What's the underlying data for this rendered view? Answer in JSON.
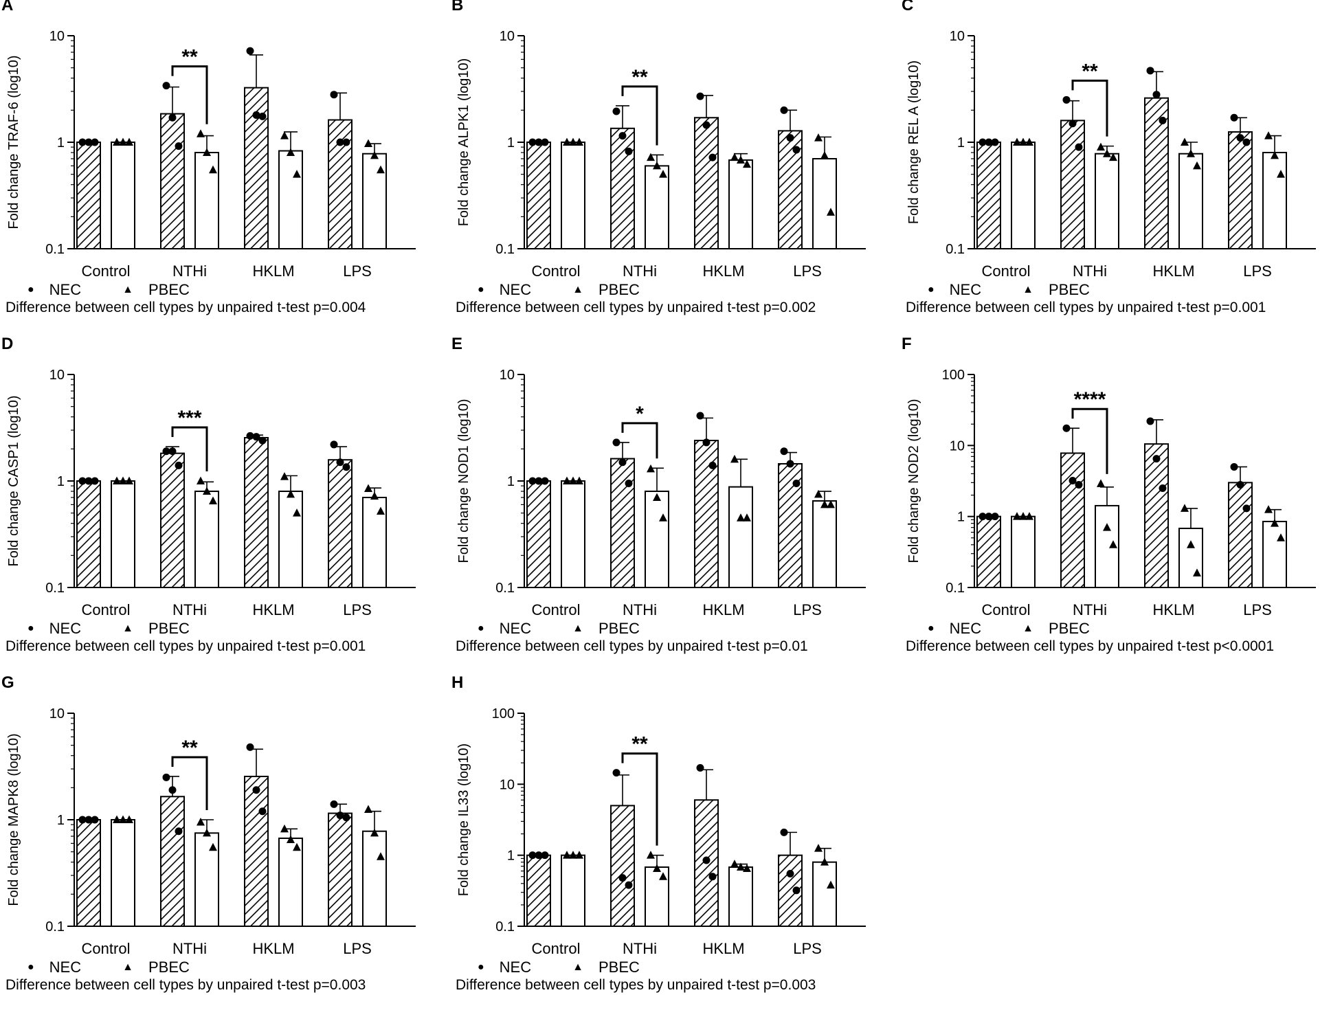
{
  "figure": {
    "categories": [
      "Control",
      "NTHi",
      "HKLM",
      "LPS"
    ],
    "legend": [
      {
        "symbol": "●",
        "label": "NEC"
      },
      {
        "symbol": "▲",
        "label": "PBEC"
      }
    ],
    "bar_colors": {
      "line": "#000000",
      "fill": "#ffffff"
    }
  },
  "chart_data": [
    {
      "type": "bar",
      "panel_label": "A",
      "ylabel": "Fold change TRAF-6 (log10)",
      "yscale": "log",
      "ylim": [
        0.1,
        10
      ],
      "ytick_labels": [
        "0.1",
        "1",
        "10"
      ],
      "categories": [
        "Control",
        "NTHi",
        "HKLM",
        "LPS"
      ],
      "series": [
        {
          "name": "NEC",
          "values": [
            1.0,
            1.85,
            3.25,
            1.62
          ],
          "err_upper": [
            1.02,
            3.3,
            6.6,
            2.9
          ],
          "points": [
            [
              1.0,
              1.0,
              1.0
            ],
            [
              3.4,
              1.7,
              0.92
            ],
            [
              7.2,
              1.8,
              1.75
            ],
            [
              2.8,
              1.0,
              1.0
            ]
          ]
        },
        {
          "name": "PBEC",
          "values": [
            1.0,
            0.8,
            0.83,
            0.78
          ],
          "err_upper": [
            1.0,
            1.15,
            1.25,
            0.97
          ],
          "points": [
            [
              1.0,
              1.0,
              1.0
            ],
            [
              1.2,
              0.8,
              0.55
            ],
            [
              1.15,
              0.8,
              0.5
            ],
            [
              0.97,
              0.75,
              0.55
            ]
          ]
        }
      ],
      "significance": {
        "category": "NTHi",
        "label": "**"
      },
      "note": "Difference between cell types by unpaired t-test p=0.004"
    },
    {
      "type": "bar",
      "panel_label": "B",
      "ylabel": "Fold change ALPK1 (log10)",
      "yscale": "log",
      "ylim": [
        0.1,
        10
      ],
      "ytick_labels": [
        "0.1",
        "1",
        "10"
      ],
      "categories": [
        "Control",
        "NTHi",
        "HKLM",
        "LPS"
      ],
      "series": [
        {
          "name": "NEC",
          "values": [
            1.0,
            1.35,
            1.7,
            1.28
          ],
          "err_upper": [
            1.02,
            2.2,
            2.75,
            2.0
          ],
          "points": [
            [
              1.0,
              1.0,
              1.0
            ],
            [
              1.95,
              1.15,
              0.82
            ],
            [
              2.7,
              1.45,
              0.72
            ],
            [
              2.0,
              1.1,
              0.85
            ]
          ]
        },
        {
          "name": "PBEC",
          "values": [
            1.0,
            0.6,
            0.68,
            0.7
          ],
          "err_upper": [
            1.0,
            0.76,
            0.78,
            1.12
          ],
          "points": [
            [
              1.0,
              1.0,
              1.0
            ],
            [
              0.72,
              0.6,
              0.5
            ],
            [
              0.72,
              0.68,
              0.62
            ],
            [
              1.1,
              0.75,
              0.22
            ]
          ]
        }
      ],
      "significance": {
        "category": "NTHi",
        "label": "**"
      },
      "note": "Difference between cell types by unpaired t-test p=0.002"
    },
    {
      "type": "bar",
      "panel_label": "C",
      "ylabel": "Fold change REL A (log10)",
      "yscale": "log",
      "ylim": [
        0.1,
        10
      ],
      "ytick_labels": [
        "0.1",
        "1",
        "10"
      ],
      "categories": [
        "Control",
        "NTHi",
        "HKLM",
        "LPS"
      ],
      "series": [
        {
          "name": "NEC",
          "values": [
            1.0,
            1.6,
            2.6,
            1.25
          ],
          "err_upper": [
            1.02,
            2.45,
            4.6,
            1.7
          ],
          "points": [
            [
              1.0,
              1.0,
              1.0
            ],
            [
              2.5,
              1.5,
              0.9
            ],
            [
              4.7,
              2.8,
              1.6
            ],
            [
              1.7,
              1.1,
              1.0
            ]
          ]
        },
        {
          "name": "PBEC",
          "values": [
            1.0,
            0.78,
            0.78,
            0.8
          ],
          "err_upper": [
            1.0,
            0.92,
            1.0,
            1.15
          ],
          "points": [
            [
              1.0,
              1.0,
              1.0
            ],
            [
              0.9,
              0.78,
              0.72
            ],
            [
              1.0,
              0.78,
              0.6
            ],
            [
              1.15,
              0.75,
              0.5
            ]
          ]
        }
      ],
      "significance": {
        "category": "NTHi",
        "label": "**"
      },
      "note": "Difference between cell types by unpaired t-test p=0.001"
    },
    {
      "type": "bar",
      "panel_label": "D",
      "ylabel": "Fold change CASP1 (log10)",
      "yscale": "log",
      "ylim": [
        0.1,
        10
      ],
      "ytick_labels": [
        "0.1",
        "1",
        "10"
      ],
      "categories": [
        "Control",
        "NTHi",
        "HKLM",
        "LPS"
      ],
      "series": [
        {
          "name": "NEC",
          "values": [
            1.0,
            1.82,
            2.55,
            1.58
          ],
          "err_upper": [
            1.02,
            2.1,
            2.7,
            2.1
          ],
          "points": [
            [
              1.0,
              1.0,
              1.0
            ],
            [
              1.9,
              1.9,
              1.4
            ],
            [
              2.65,
              2.6,
              2.4
            ],
            [
              2.2,
              1.5,
              1.35
            ]
          ]
        },
        {
          "name": "PBEC",
          "values": [
            1.0,
            0.8,
            0.8,
            0.7
          ],
          "err_upper": [
            1.0,
            0.98,
            1.12,
            0.86
          ],
          "points": [
            [
              1.0,
              1.0,
              1.0
            ],
            [
              1.0,
              0.8,
              0.65
            ],
            [
              1.1,
              0.75,
              0.5
            ],
            [
              0.85,
              0.72,
              0.52
            ]
          ]
        }
      ],
      "significance": {
        "category": "NTHi",
        "label": "***"
      },
      "note": "Difference between cell types by unpaired t-test p=0.001"
    },
    {
      "type": "bar",
      "panel_label": "E",
      "ylabel": "Fold change NOD1 (log10)",
      "yscale": "log",
      "ylim": [
        0.1,
        10
      ],
      "ytick_labels": [
        "0.1",
        "1",
        "10"
      ],
      "categories": [
        "Control",
        "NTHi",
        "HKLM",
        "LPS"
      ],
      "series": [
        {
          "name": "NEC",
          "values": [
            1.0,
            1.62,
            2.4,
            1.45
          ],
          "err_upper": [
            1.02,
            2.3,
            3.9,
            1.85
          ],
          "points": [
            [
              1.0,
              1.0,
              1.0
            ],
            [
              2.3,
              1.5,
              0.95
            ],
            [
              4.1,
              2.3,
              1.4
            ],
            [
              1.9,
              1.45,
              0.95
            ]
          ]
        },
        {
          "name": "PBEC",
          "values": [
            1.0,
            0.8,
            0.88,
            0.65
          ],
          "err_upper": [
            1.0,
            1.32,
            1.6,
            0.8
          ],
          "points": [
            [
              1.0,
              1.0,
              1.0
            ],
            [
              1.3,
              0.7,
              0.45
            ],
            [
              1.6,
              0.45,
              0.45
            ],
            [
              0.75,
              0.6,
              0.6
            ]
          ]
        }
      ],
      "significance": {
        "category": "NTHi",
        "label": "*"
      },
      "note": "Difference between cell types by unpaired t-test p=0.01"
    },
    {
      "type": "bar",
      "panel_label": "F",
      "ylabel": "Fold change NOD2 (log10)",
      "yscale": "log",
      "ylim": [
        0.1,
        100
      ],
      "ytick_labels": [
        "0.1",
        "1",
        "10",
        "100"
      ],
      "categories": [
        "Control",
        "NTHi",
        "HKLM",
        "LPS"
      ],
      "series": [
        {
          "name": "NEC",
          "values": [
            1.0,
            7.8,
            10.5,
            3.0
          ],
          "err_upper": [
            1.02,
            17.5,
            23.0,
            5.0
          ],
          "points": [
            [
              1.0,
              1.0,
              1.0
            ],
            [
              17.5,
              3.2,
              2.8
            ],
            [
              22.0,
              6.5,
              2.5
            ],
            [
              5.0,
              2.8,
              1.3
            ]
          ]
        },
        {
          "name": "PBEC",
          "values": [
            1.0,
            1.42,
            0.68,
            0.85
          ],
          "err_upper": [
            1.0,
            2.6,
            1.3,
            1.25
          ],
          "points": [
            [
              1.0,
              1.0,
              1.0
            ],
            [
              2.9,
              0.7,
              0.4
            ],
            [
              1.3,
              0.4,
              0.16
            ],
            [
              1.25,
              0.8,
              0.5
            ]
          ]
        }
      ],
      "significance": {
        "category": "NTHi",
        "label": "****"
      },
      "note": "Difference between cell types by unpaired t-test p<0.0001"
    },
    {
      "type": "bar",
      "panel_label": "G",
      "ylabel": "Fold change MAPK8 (log10)",
      "yscale": "log",
      "ylim": [
        0.1,
        10
      ],
      "ytick_labels": [
        "0.1",
        "1",
        "10"
      ],
      "categories": [
        "Control",
        "NTHi",
        "HKLM",
        "LPS"
      ],
      "series": [
        {
          "name": "NEC",
          "values": [
            1.0,
            1.65,
            2.55,
            1.15
          ],
          "err_upper": [
            1.02,
            2.55,
            4.6,
            1.4
          ],
          "points": [
            [
              1.0,
              1.0,
              1.0
            ],
            [
              2.5,
              1.9,
              0.78
            ],
            [
              4.8,
              1.9,
              1.2
            ],
            [
              1.4,
              1.1,
              1.05
            ]
          ]
        },
        {
          "name": "PBEC",
          "values": [
            1.0,
            0.75,
            0.67,
            0.78
          ],
          "err_upper": [
            1.0,
            1.0,
            0.82,
            1.2
          ],
          "points": [
            [
              1.0,
              1.0,
              1.0
            ],
            [
              0.95,
              0.75,
              0.55
            ],
            [
              0.82,
              0.65,
              0.55
            ],
            [
              1.25,
              0.75,
              0.45
            ]
          ]
        }
      ],
      "significance": {
        "category": "NTHi",
        "label": "**"
      },
      "note": "Difference between cell types by unpaired t-test p=0.003"
    },
    {
      "type": "bar",
      "panel_label": "H",
      "ylabel": "Fold change IL33 (log10)",
      "yscale": "log",
      "ylim": [
        0.1,
        100
      ],
      "ytick_labels": [
        "0.1",
        "1",
        "10",
        "100"
      ],
      "categories": [
        "Control",
        "NTHi",
        "HKLM",
        "LPS"
      ],
      "series": [
        {
          "name": "NEC",
          "values": [
            1.0,
            5.0,
            6.0,
            1.0
          ],
          "err_upper": [
            1.02,
            13.5,
            16.0,
            2.1
          ],
          "points": [
            [
              1.0,
              1.0,
              1.0
            ],
            [
              14.5,
              0.48,
              0.38
            ],
            [
              17.0,
              0.85,
              0.5
            ],
            [
              2.1,
              0.55,
              0.32
            ]
          ]
        },
        {
          "name": "PBEC",
          "values": [
            1.0,
            0.68,
            0.68,
            0.8
          ],
          "err_upper": [
            1.0,
            1.0,
            0.75,
            1.25
          ],
          "points": [
            [
              1.0,
              1.0,
              1.0
            ],
            [
              1.0,
              0.65,
              0.5
            ],
            [
              0.75,
              0.68,
              0.65
            ],
            [
              1.25,
              0.8,
              0.38
            ]
          ]
        }
      ],
      "significance": {
        "category": "NTHi",
        "label": "**"
      },
      "note": "Difference between cell types by unpaired t-test p=0.003"
    }
  ]
}
